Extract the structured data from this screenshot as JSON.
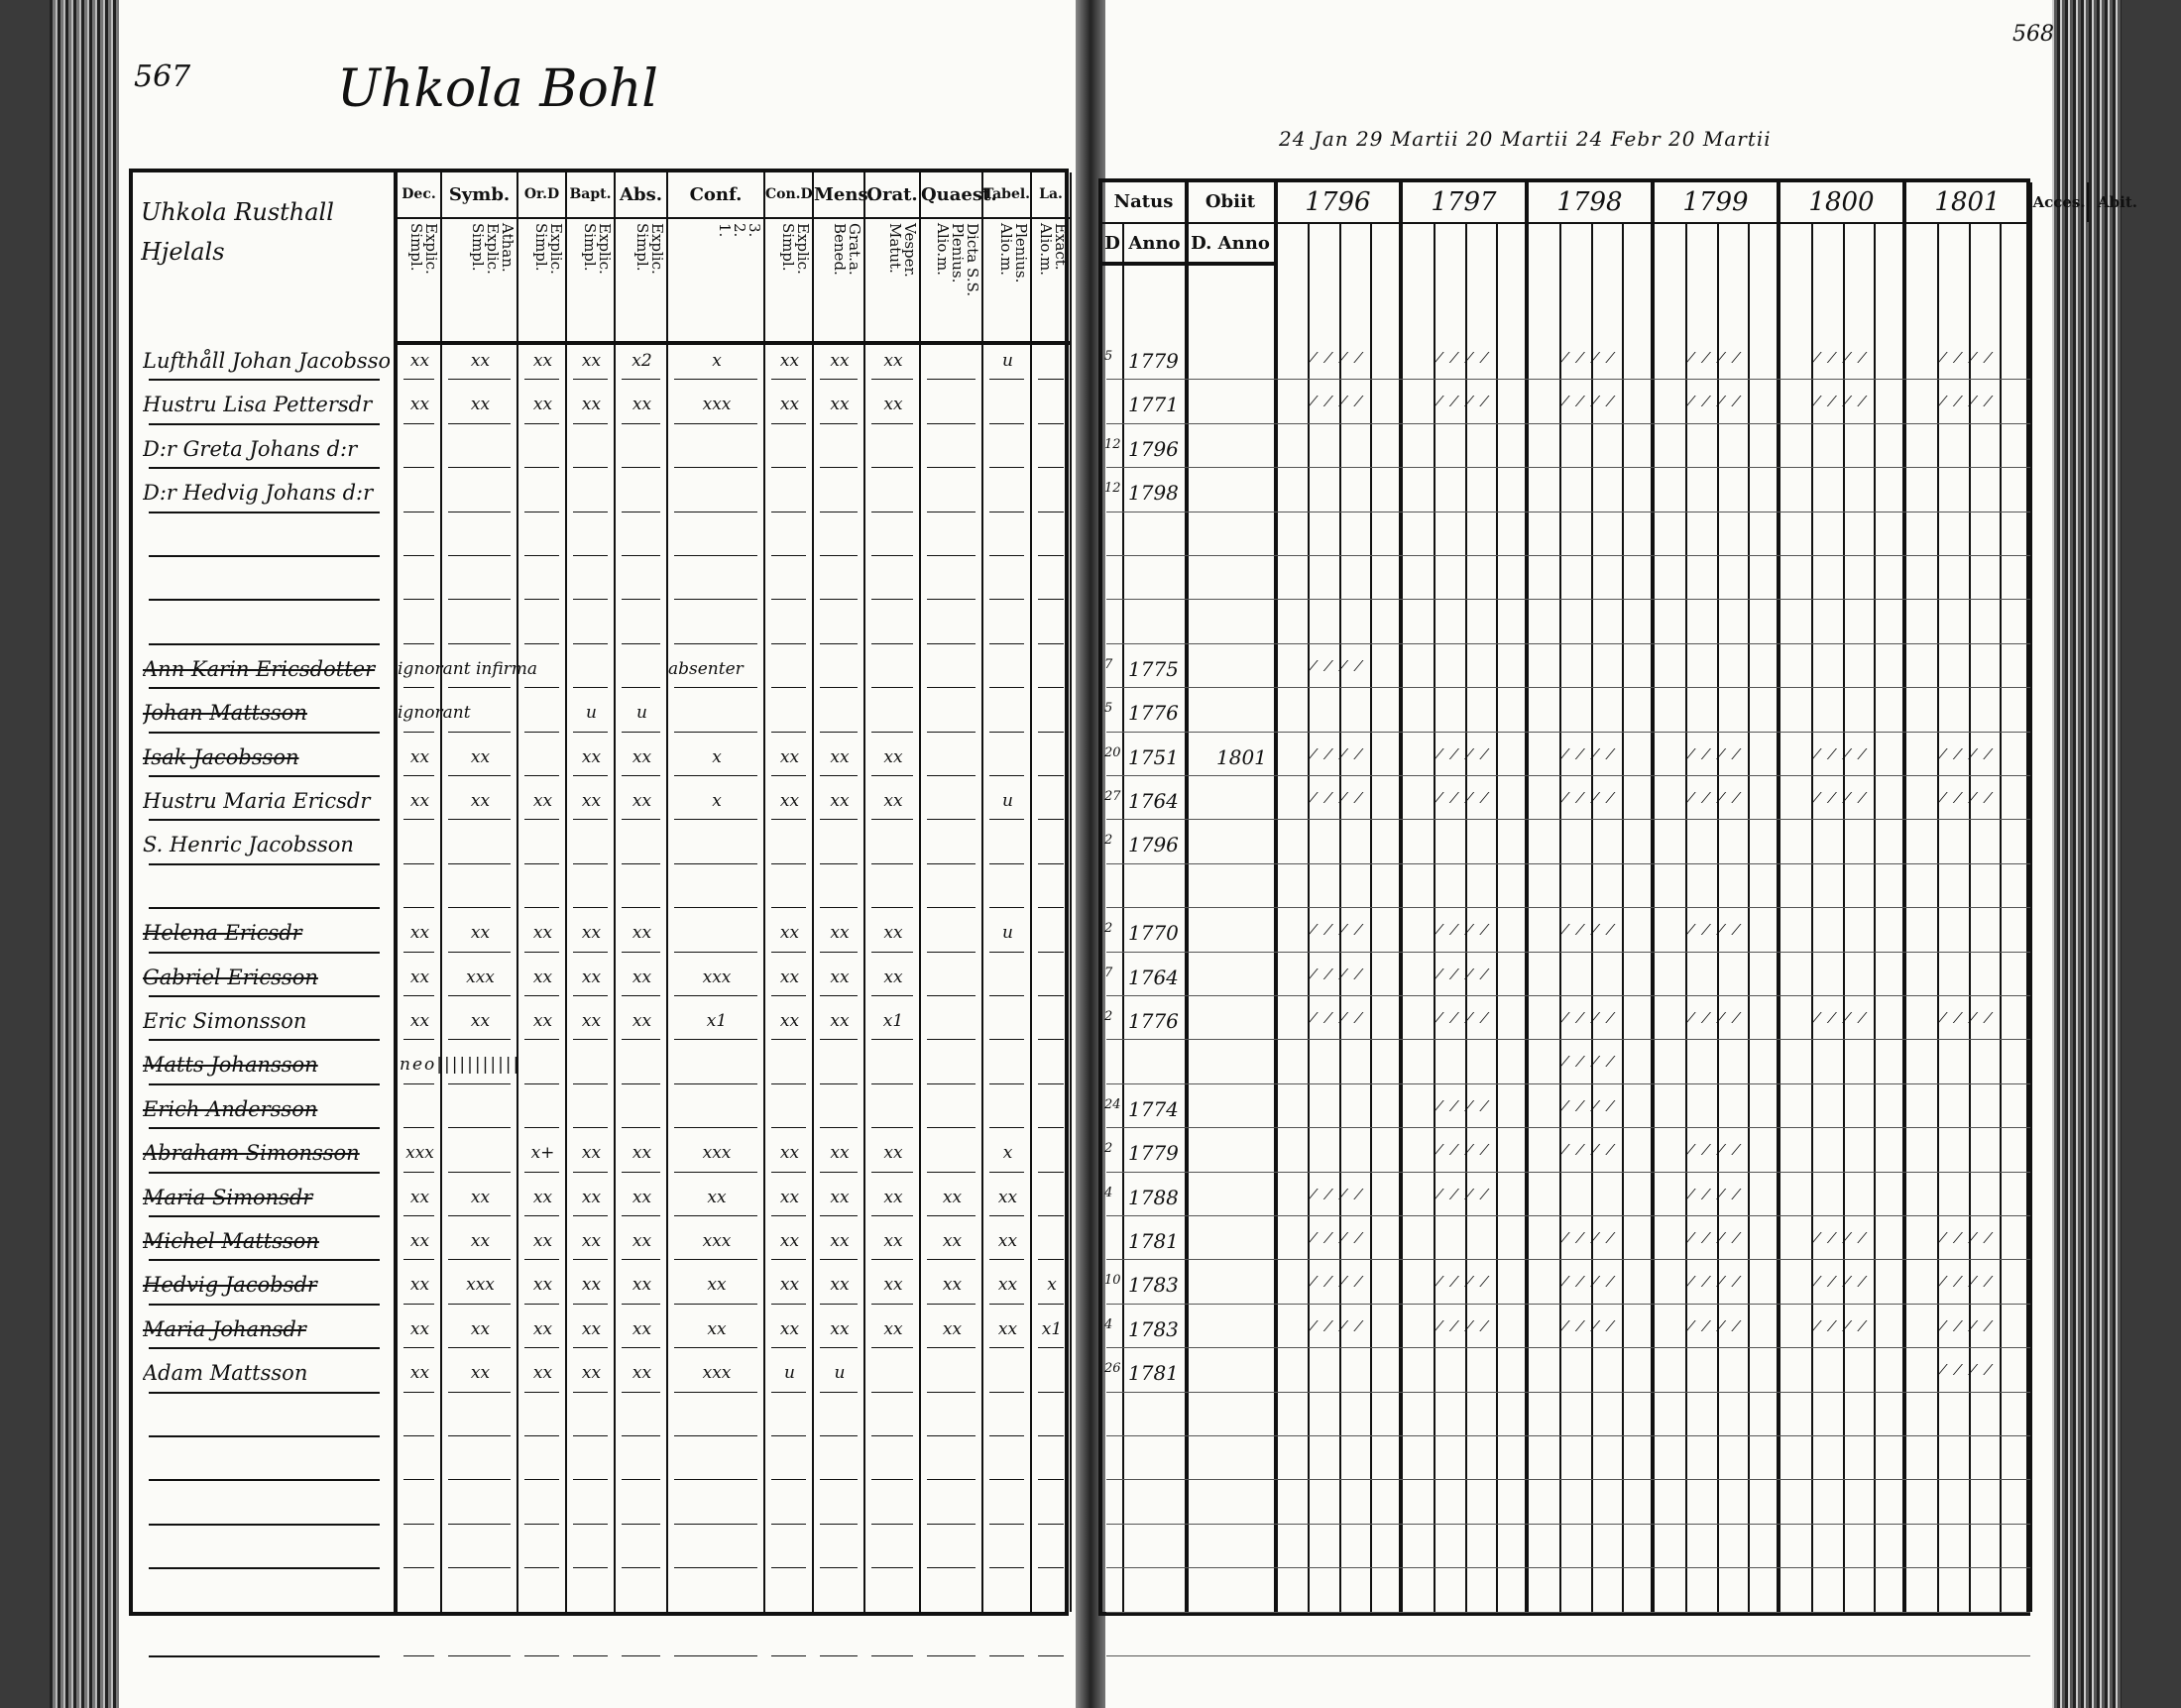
{
  "header": {
    "left_page_number": "567",
    "right_page_number": "568",
    "village_title": "Uhkola Bohl",
    "dates_line": "24 Jan 29 Martii 20 Martii 24 Febr 20 Martii"
  },
  "left_table": {
    "name_header": "Uhkola Rusthall Hjelals",
    "columns": [
      {
        "label": "Dec.",
        "sub": "Explic.\nSimpl."
      },
      {
        "label": "Symb.",
        "sub": "Athan.\nExplic.\nSimpl."
      },
      {
        "label": "Or.D",
        "sub": "Explic.\nSimpl."
      },
      {
        "label": "Bapt.",
        "sub": "Explic.\nSimpl."
      },
      {
        "label": "Abs.",
        "sub": "Explic.\nSimpl."
      },
      {
        "label": "Conf.",
        "sub": "3.\n2.\n1."
      },
      {
        "label": "Con.D",
        "sub": "Explic.\nSimpl."
      },
      {
        "label": "Mens.",
        "sub": "Grat.a.\nBened."
      },
      {
        "label": "Orat.",
        "sub": "Vesper.\nMatut."
      },
      {
        "label": "Quaest.",
        "sub": "Dicta S.S.\nPlenius.\nAlio.m."
      },
      {
        "label": "Tabel.",
        "sub": "Plenius.\nAlio.m."
      },
      {
        "label": "La.",
        "sub": "Exact.\nAlio.m."
      }
    ]
  },
  "right_table": {
    "natus": {
      "label": "Natus",
      "sub_day": "D",
      "sub_year": "Anno"
    },
    "obiit": {
      "label": "Obiit",
      "sub": "D. Anno"
    },
    "years": [
      "1796",
      "1797",
      "1798",
      "1799",
      "1800",
      "1801"
    ],
    "accessit": "Acces.",
    "abiit": "Abit."
  },
  "rows": [
    {
      "name": "Lufthåll Johan Jacobsson",
      "struck": false,
      "marks": "xx|xx|xx|xx|x2|x|xx|xx|xx||u|",
      "born_day": "5",
      "born_year": "1779",
      "obiit": "",
      "years": [
        1,
        1,
        1,
        1,
        1,
        1
      ]
    },
    {
      "name": "Hustru Lisa Pettersdr",
      "struck": false,
      "marks": "xx|xx|xx|xx|xx|xxx|xx|xx|xx|||",
      "born_day": "",
      "born_year": "1771",
      "obiit": "",
      "years": [
        1,
        1,
        1,
        1,
        1,
        1
      ]
    },
    {
      "name": "D:r Greta Johans d:r",
      "struck": false,
      "marks": "",
      "born_day": "12",
      "born_year": "1796",
      "obiit": "",
      "years": []
    },
    {
      "name": "D:r Hedvig Johans d:r",
      "struck": false,
      "marks": "",
      "born_day": "12",
      "born_year": "1798",
      "obiit": "",
      "years": []
    },
    {
      "name": "",
      "blank": true
    },
    {
      "name": "",
      "blank": true
    },
    {
      "name": "",
      "blank": true
    },
    {
      "name": "Ann Karin Ericsdotter",
      "struck": true,
      "marks": "ignorant infirma|||||absenter|||||",
      "born_day": "7",
      "born_year": "1775",
      "obiit": "",
      "years": [
        1
      ]
    },
    {
      "name": "Johan Mattsson",
      "struck": true,
      "marks": "ignorant|||u|u|||||||",
      "born_day": "5",
      "born_year": "1776",
      "obiit": "",
      "years": []
    },
    {
      "name": "Isak Jacobsson",
      "struck": true,
      "marks": "xx|xx||xx|xx|x|xx|xx|xx|||",
      "born_day": "20",
      "born_year": "1751",
      "obiit": "1801",
      "years": [
        1,
        1,
        1,
        1,
        1,
        1
      ]
    },
    {
      "name": "Hustru Maria Ericsdr",
      "struck": false,
      "marks": "xx|xx|xx|xx|xx|x|xx|xx|xx||u|",
      "born_day": "27",
      "born_year": "1764",
      "obiit": "",
      "years": [
        1,
        1,
        1,
        1,
        1,
        1
      ]
    },
    {
      "name": "S. Henric Jacobsson",
      "struck": false,
      "marks": "",
      "born_day": "2",
      "born_year": "1796",
      "obiit": "",
      "years": []
    },
    {
      "name": "",
      "blank": true
    },
    {
      "name": "Helena Ericsdr",
      "struck": true,
      "marks": "xx|xx|xx|xx|xx||xx|xx|xx||u|",
      "born_day": "2",
      "born_year": "1770",
      "obiit": "",
      "years": [
        1,
        1,
        1,
        1
      ]
    },
    {
      "name": "Gabriel Ericsson",
      "struck": true,
      "marks": "xx|xxx|xx|xx|xx|xxx|xx|xx|xx|||",
      "born_day": "7",
      "born_year": "1764",
      "obiit": "",
      "years": [
        1,
        1
      ]
    },
    {
      "name": "Eric Simonsson",
      "struck": false,
      "marks": "xx|xx|xx|xx|xx|x1|xx|xx|x1|||",
      "born_day": "2",
      "born_year": "1776",
      "obiit": "",
      "years": [
        1,
        1,
        1,
        1,
        1,
        1
      ]
    },
    {
      "name": "Matts Johansson",
      "struck": true,
      "marks": "neo|||||||||||",
      "born_day": "",
      "born_year": "",
      "obiit": "",
      "years": [
        0,
        0,
        1
      ]
    },
    {
      "name": "Erich Andersson",
      "struck": true,
      "marks": "",
      "born_day": "24",
      "born_year": "1774",
      "obiit": "",
      "years": [
        0,
        1,
        1
      ]
    },
    {
      "name": "Abraham Simonsson",
      "struck": true,
      "marks": "xxx||x+|xx|xx|xxx|xx|xx|xx||x|",
      "born_day": "2",
      "born_year": "1779",
      "obiit": "",
      "years": [
        0,
        1,
        1,
        1
      ]
    },
    {
      "name": "Maria Simonsdr",
      "struck": true,
      "marks": "xx|xx|xx|xx|xx|xx|xx|xx|xx|xx|xx|",
      "born_day": "4",
      "born_year": "1788",
      "obiit": "",
      "years": [
        1,
        1,
        0,
        1
      ]
    },
    {
      "name": "Michel Mattsson",
      "struck": true,
      "marks": "xx|xx|xx|xx|xx|xxx|xx|xx|xx|xx|xx|",
      "born_day": "",
      "born_year": "1781",
      "obiit": "",
      "years": [
        1,
        0,
        1,
        1,
        1,
        1
      ]
    },
    {
      "name": "Hedvig Jacobsdr",
      "struck": true,
      "marks": "xx|xxx|xx|xx|xx|xx|xx|xx|xx|xx|xx|x",
      "born_day": "10",
      "born_year": "1783",
      "obiit": "",
      "years": [
        1,
        1,
        1,
        1,
        1,
        1
      ]
    },
    {
      "name": "Maria Johansdr",
      "struck": true,
      "marks": "xx|xx|xx|xx|xx|xx|xx|xx|xx|xx|xx|x1",
      "born_day": "4",
      "born_year": "1783",
      "obiit": "",
      "years": [
        1,
        1,
        1,
        1,
        1,
        1
      ]
    },
    {
      "name": "Adam Mattsson",
      "struck": false,
      "marks": "xx|xx|xx|xx|xx|xxx|u|u||||",
      "born_day": "26",
      "born_year": "1781",
      "obiit": "",
      "years": [
        0,
        0,
        0,
        0,
        0,
        1
      ]
    },
    {
      "name": "",
      "blank": true
    },
    {
      "name": "",
      "blank": true
    },
    {
      "name": "",
      "blank": true
    },
    {
      "name": "",
      "blank": true
    },
    {
      "name": "",
      "blank": true
    },
    {
      "name": "",
      "blank": true
    }
  ],
  "colors": {
    "paper": "#fbfbf8",
    "ink": "#111111",
    "spine": "#3a3a3a"
  }
}
